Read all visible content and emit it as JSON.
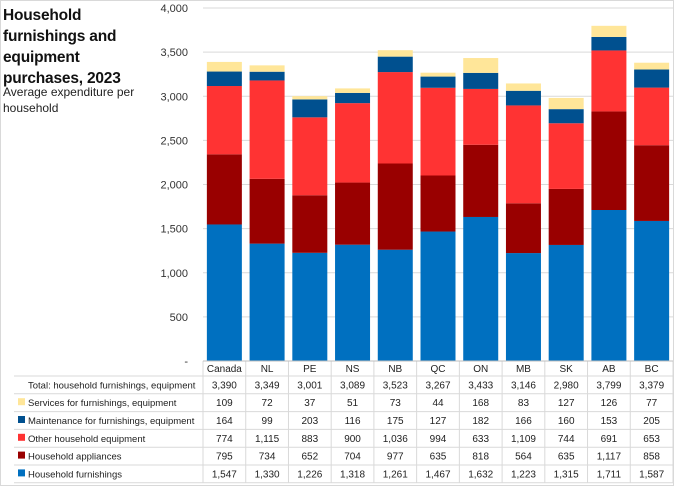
{
  "title": "Household furnishings and equipment purchases, 2023",
  "subtitle": "Average expenditure per household",
  "chart_data": {
    "type": "bar",
    "stacked": true,
    "title": "Household furnishings and equipment purchases, 2023",
    "subtitle": "Average expenditure per household",
    "xlabel": "",
    "ylabel": "",
    "ylim": [
      0,
      4000
    ],
    "yticks": [
      0,
      500,
      1000,
      1500,
      2000,
      2500,
      3000,
      3500,
      4000
    ],
    "ytick_labels": [
      "-",
      "500",
      "1,000",
      "1,500",
      "2,000",
      "2,500",
      "3,000",
      "3,500",
      "4,000"
    ],
    "grid": true,
    "legend": "table-below",
    "categories": [
      "Canada",
      "NL",
      "PE",
      "NS",
      "NB",
      "QC",
      "ON",
      "MB",
      "SK",
      "AB",
      "BC"
    ],
    "series": [
      {
        "name": "Household furnishings",
        "color": "#0070c0",
        "values": [
          1547,
          1330,
          1226,
          1318,
          1261,
          1467,
          1632,
          1223,
          1315,
          1711,
          1587
        ]
      },
      {
        "name": "Household appliances",
        "color": "#990000",
        "values": [
          795,
          734,
          652,
          704,
          977,
          635,
          818,
          564,
          635,
          1117,
          858
        ]
      },
      {
        "name": "Other household equipment",
        "color": "#ff3333",
        "values": [
          774,
          1115,
          883,
          900,
          1036,
          994,
          633,
          1109,
          744,
          691,
          653
        ]
      },
      {
        "name": "Maintenance for furnishings, equipment",
        "color": "#00508f",
        "values": [
          164,
          99,
          203,
          116,
          175,
          127,
          182,
          166,
          160,
          153,
          205
        ]
      },
      {
        "name": "Services for furnishings, equipment",
        "color": "#ffe699",
        "values": [
          109,
          72,
          37,
          51,
          73,
          44,
          168,
          83,
          127,
          126,
          77
        ]
      }
    ],
    "total": {
      "name": "Total: household furnishings, equipment",
      "values": [
        3390,
        3349,
        3001,
        3089,
        3523,
        3267,
        3433,
        3146,
        2980,
        3799,
        3379
      ]
    },
    "table_row_order": [
      "total",
      "Services for furnishings, equipment",
      "Maintenance for furnishings, equipment",
      "Other household equipment",
      "Household appliances",
      "Household furnishings"
    ]
  }
}
